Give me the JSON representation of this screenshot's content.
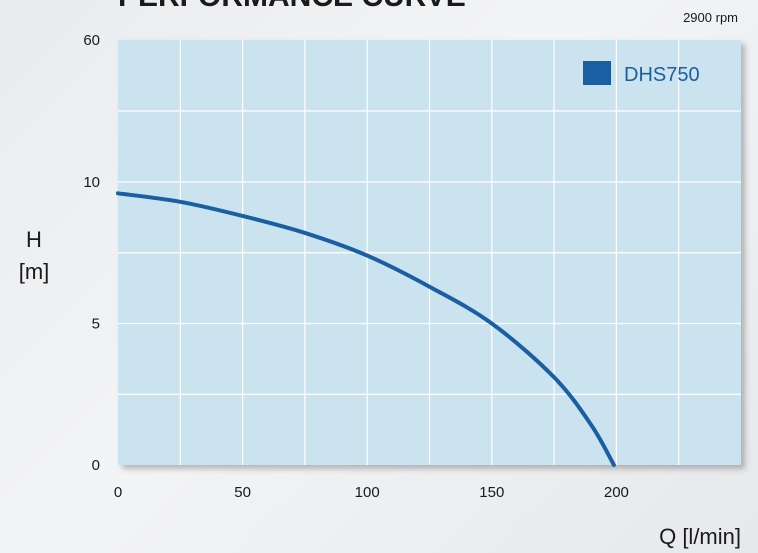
{
  "chart_data": {
    "type": "line",
    "title": "PERFORMANCE CURVE",
    "subtitle": "2900 rpm",
    "xlabel": "Q [l/min]",
    "ylabel_lines": [
      "H",
      "[m]"
    ],
    "xlim": [
      0,
      250
    ],
    "x_ticks": [
      0,
      50,
      100,
      150,
      200
    ],
    "y_ticks": [
      {
        "value": 0,
        "label": "0"
      },
      {
        "value": 5,
        "label": "5"
      },
      {
        "value": 10,
        "label": "10"
      },
      {
        "value": 60,
        "label": "60"
      }
    ],
    "grid": true,
    "legend_position": "top-right",
    "colors": {
      "plot_bg": "#cbe2ef",
      "grid": "#ffffff",
      "line": "#1b5fa3",
      "legend_swatch": "#1b5fa3",
      "legend_text": "#1b5fa3"
    },
    "series": [
      {
        "name": "DHS750",
        "points": [
          [
            0,
            9.6
          ],
          [
            25,
            9.3
          ],
          [
            50,
            8.8
          ],
          [
            75,
            8.2
          ],
          [
            100,
            7.4
          ],
          [
            125,
            6.3
          ],
          [
            150,
            5.0
          ],
          [
            175,
            3.1
          ],
          [
            190,
            1.4
          ],
          [
            199,
            0.0
          ]
        ]
      }
    ]
  }
}
